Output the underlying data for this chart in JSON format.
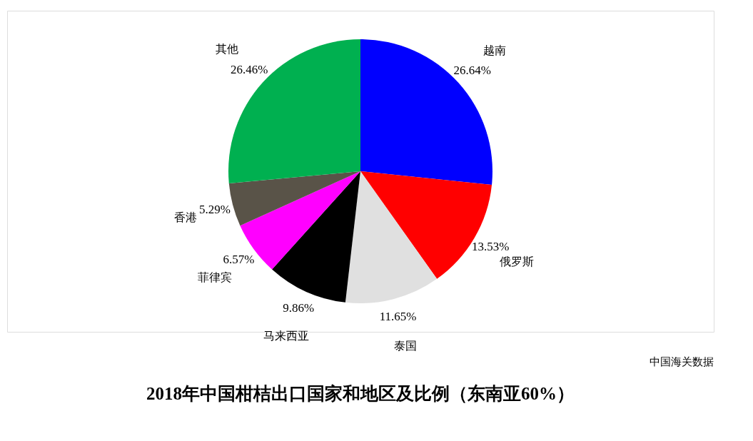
{
  "chart_data": {
    "type": "pie",
    "title": "2018年中国柑桔出口国家和地区及比例（东南亚60%）",
    "categories": [
      "越南",
      "俄罗斯",
      "泰国",
      "马来西亚",
      "菲律宾",
      "香港",
      "其他"
    ],
    "values": [
      26.64,
      13.53,
      11.65,
      9.86,
      6.57,
      5.29,
      26.46
    ],
    "value_labels": [
      "26.64%",
      "13.53%",
      "11.65%",
      "9.86%",
      "6.57%",
      "5.29%",
      "26.46%"
    ],
    "colors": [
      "#0000ff",
      "#ff0000",
      "#e0e0e0",
      "#000000",
      "#ff00ff",
      "#595348",
      "#00b050"
    ],
    "annotations": [
      "中国海关数据"
    ],
    "legend": false
  }
}
